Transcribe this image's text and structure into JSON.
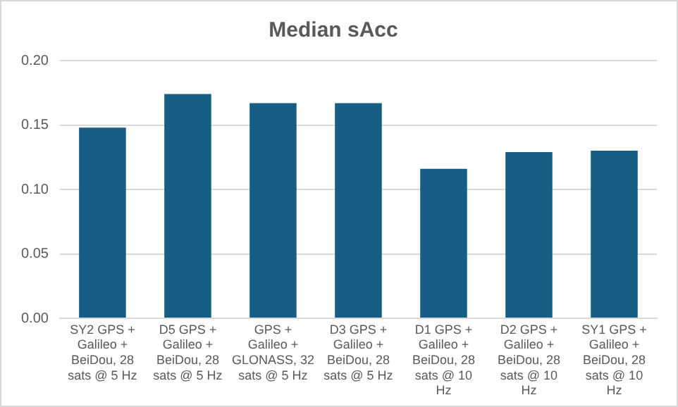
{
  "chart_data": {
    "type": "bar",
    "title": "Median sAcc",
    "categories": [
      "SY2 GPS + Galileo + BeiDou, 28 sats @ 5 Hz",
      "D5 GPS + Galileo + BeiDou, 28 sats @ 5 Hz",
      "GPS + Galileo + GLONASS, 32 sats @ 5 Hz",
      "D3 GPS + Galileo + BeiDou, 28 sats @ 5 Hz",
      "D1 GPS + Galileo + BeiDou, 28 sats @ 10 Hz",
      "D2 GPS + Galileo + BeiDou, 28 sats @ 10 Hz",
      "SY1 GPS + Galileo + BeiDou, 28 sats @ 10 Hz"
    ],
    "values": [
      0.148,
      0.174,
      0.167,
      0.167,
      0.116,
      0.129,
      0.13
    ],
    "color": "#165e83",
    "ylim": [
      0,
      0.2
    ],
    "yticks": [
      {
        "value": 0,
        "label": "0.00"
      },
      {
        "value": 0.05,
        "label": "0.05"
      },
      {
        "value": 0.1,
        "label": "0.10"
      },
      {
        "value": 0.15,
        "label": "0.15"
      },
      {
        "value": 0.2,
        "label": "0.20"
      }
    ],
    "grid": "y"
  }
}
